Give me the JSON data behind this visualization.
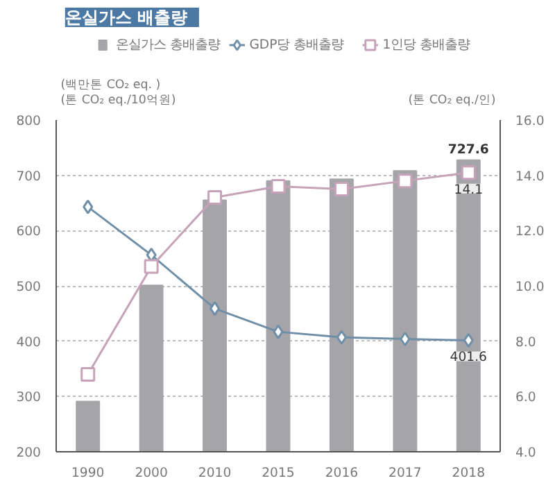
{
  "chart_data": {
    "type": "bar",
    "title": "온실가스 배출량",
    "ylabel": "(백만톤 CO₂ eq. )\n(톤 CO₂ eq./10억원)",
    "y2label": "(톤 CO₂ eq./인)",
    "categories": [
      "1990",
      "2000",
      "2010",
      "2015",
      "2016",
      "2017",
      "2018"
    ],
    "series": [
      {
        "name": "온실가스 총배출량",
        "color": "#a5a5a9",
        "values": [
          291,
          501,
          655,
          690,
          693,
          708,
          727.6
        ],
        "value_labels": [
          null,
          null,
          null,
          null,
          null,
          null,
          "727.6"
        ]
      },
      {
        "name": "GDP당 총배출량",
        "type": "line",
        "marker": "diamond",
        "color": "#6f8fa8",
        "values": [
          643,
          556,
          459,
          417,
          407,
          404,
          401.6
        ],
        "value_labels": [
          null,
          null,
          null,
          null,
          null,
          null,
          "401.6"
        ]
      },
      {
        "name": "1인당 총배출량",
        "type": "line",
        "marker": "square",
        "axis": "y2",
        "color": "#c6a3b8",
        "values": [
          6.8,
          10.7,
          13.2,
          13.6,
          13.5,
          13.8,
          14.1
        ],
        "value_labels": [
          null,
          null,
          null,
          null,
          null,
          null,
          "14.1"
        ]
      }
    ],
    "ylim": [
      200,
      800
    ],
    "yticks": [
      200,
      300,
      400,
      500,
      600,
      700,
      800
    ],
    "y2lim": [
      4,
      16
    ],
    "y2ticks": [
      {
        "value": 4,
        "label": "4.0"
      },
      {
        "value": 6,
        "label": "6.0"
      },
      {
        "value": 8,
        "label": "8.0"
      },
      {
        "value": 10,
        "label": "10.0"
      },
      {
        "value": 12,
        "label": "12.0"
      },
      {
        "value": 14,
        "label": "14.0"
      },
      {
        "value": 16,
        "label": "16.0"
      }
    ],
    "grid": "y",
    "legend": "top"
  }
}
